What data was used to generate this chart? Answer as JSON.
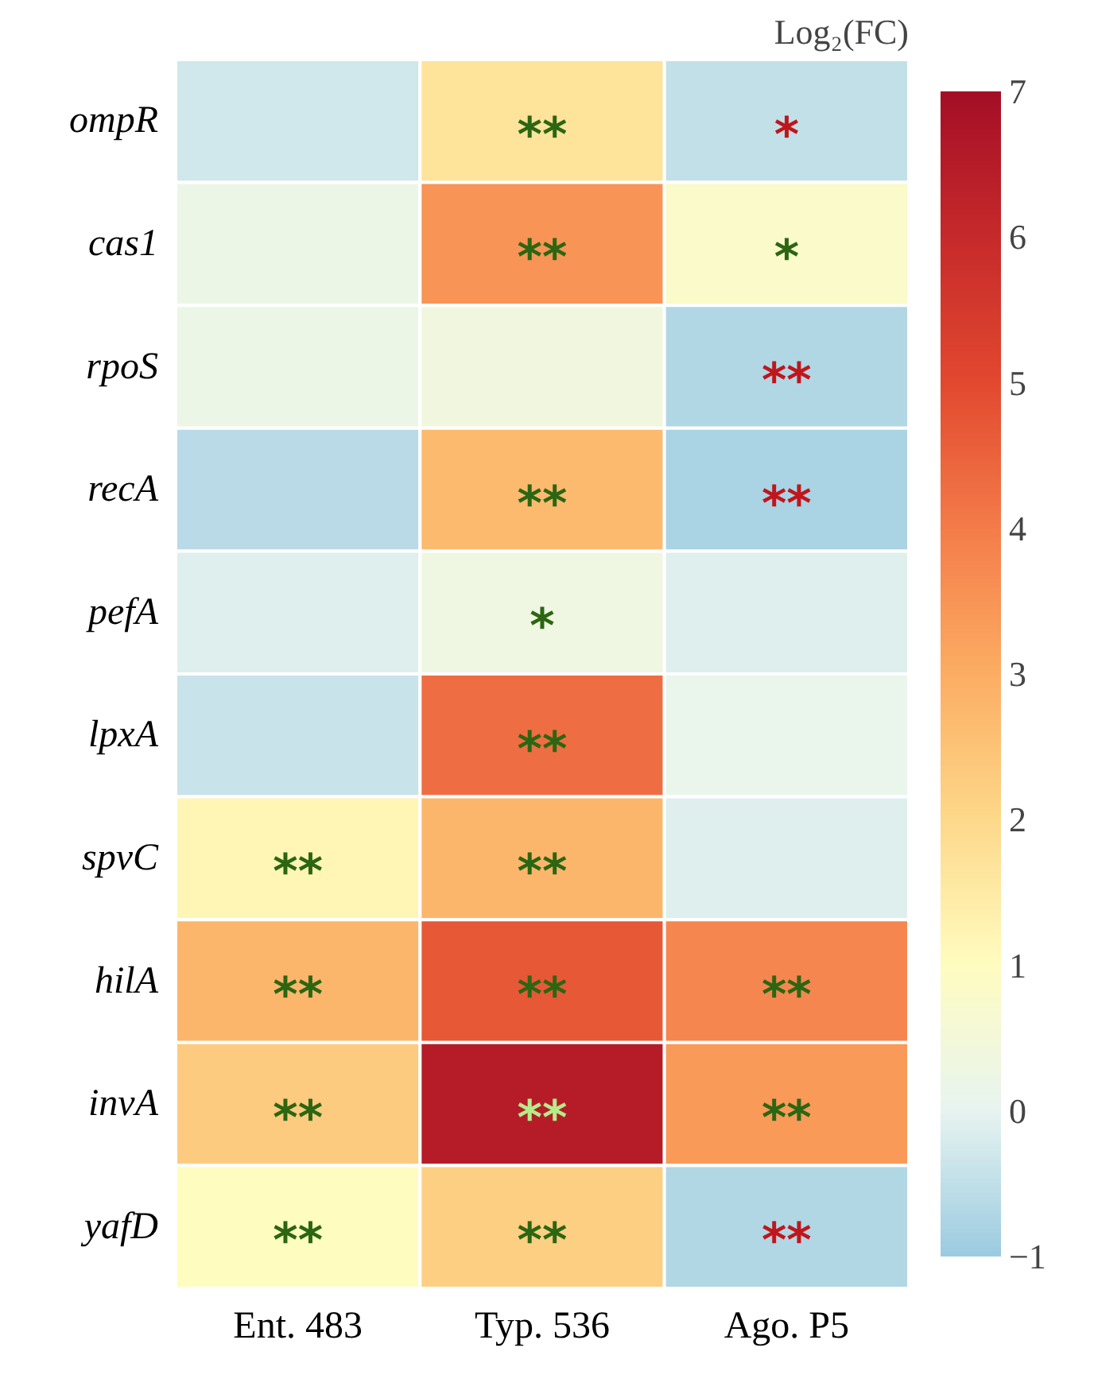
{
  "chart_data": {
    "type": "heatmap",
    "clabel": "Log₂(FC)",
    "categories": [
      "Ent. 483",
      "Typ. 536",
      "Ago. P5"
    ],
    "y_categories": [
      "ompR",
      "cas1",
      "rpoS",
      "recA",
      "pefA",
      "lpxA",
      "spvC",
      "hilA",
      "invA",
      "yafD"
    ],
    "cells": [
      [
        -0.3,
        1.7,
        -0.5
      ],
      [
        0.2,
        3.5,
        0.8
      ],
      [
        0.2,
        0.4,
        -0.7
      ],
      [
        -0.6,
        2.7,
        -0.8
      ],
      [
        -0.1,
        0.3,
        -0.1
      ],
      [
        -0.4,
        4.3,
        0.1
      ],
      [
        1.2,
        2.8,
        -0.1
      ],
      [
        2.8,
        4.7,
        3.8
      ],
      [
        2.3,
        6.5,
        3.4
      ],
      [
        1.0,
        2.2,
        -0.7
      ]
    ],
    "cell_labels": [
      [
        null,
        "**",
        "*"
      ],
      [
        null,
        "**",
        "*"
      ],
      [
        null,
        null,
        "**"
      ],
      [
        null,
        "**",
        "**"
      ],
      [
        null,
        "*",
        null
      ],
      [
        null,
        "**",
        null
      ],
      [
        "**",
        "**",
        null
      ],
      [
        "**",
        "**",
        "**"
      ],
      [
        "**",
        "**",
        "**"
      ],
      [
        "**",
        "**",
        "**"
      ]
    ],
    "clim": [
      -1,
      7
    ],
    "cticks": [
      -1,
      0,
      1,
      2,
      3,
      4,
      5,
      6,
      7
    ]
  }
}
